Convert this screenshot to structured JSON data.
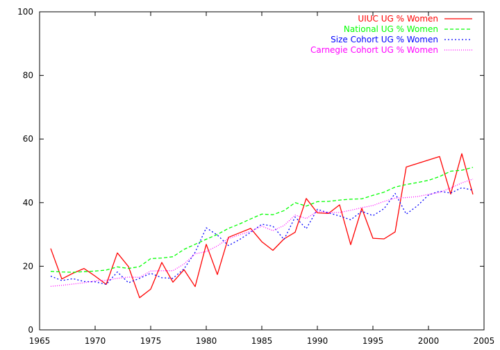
{
  "chart_data": {
    "type": "line",
    "title": "",
    "xlabel": "",
    "ylabel": "",
    "xlim": [
      1965,
      2005
    ],
    "ylim": [
      0,
      100
    ],
    "xticks": [
      1965,
      1970,
      1975,
      1980,
      1985,
      1990,
      1995,
      2000,
      2005
    ],
    "yticks": [
      0,
      20,
      40,
      60,
      80,
      100
    ],
    "grid": false,
    "legend_position": "top-right",
    "series": [
      {
        "name": "UIUC UG % Women",
        "color": "#ff0000",
        "style": "solid",
        "points": [
          [
            1966,
            25.6
          ],
          [
            1967,
            16.0
          ],
          [
            1968,
            17.8
          ],
          [
            1969,
            19.3
          ],
          [
            1970,
            16.9
          ],
          [
            1971,
            14.3
          ],
          [
            1972,
            24.2
          ],
          [
            1973,
            19.9
          ],
          [
            1974,
            10.1
          ],
          [
            1975,
            12.8
          ],
          [
            1976,
            21.2
          ],
          [
            1977,
            15.0
          ],
          [
            1978,
            18.9
          ],
          [
            1979,
            13.6
          ],
          [
            1980,
            26.9
          ],
          [
            1981,
            17.4
          ],
          [
            1982,
            29.1
          ],
          [
            1983,
            30.5
          ],
          [
            1984,
            31.9
          ],
          [
            1985,
            27.7
          ],
          [
            1986,
            25.0
          ],
          [
            1987,
            28.6
          ],
          [
            1988,
            30.7
          ],
          [
            1989,
            41.3
          ],
          [
            1990,
            36.8
          ],
          [
            1991,
            36.6
          ],
          [
            1992,
            39.3
          ],
          [
            1993,
            26.8
          ],
          [
            1994,
            38.2
          ],
          [
            1995,
            28.8
          ],
          [
            1996,
            28.6
          ],
          [
            1997,
            30.8
          ],
          [
            1998,
            51.2
          ],
          [
            2001,
            54.5
          ],
          [
            2002,
            42.7
          ],
          [
            2003,
            55.4
          ],
          [
            2004,
            42.6
          ]
        ]
      },
      {
        "name": "National UG % Women",
        "color": "#00ff00",
        "style": "dashed",
        "points": [
          [
            1966,
            18.4
          ],
          [
            1967,
            18.2
          ],
          [
            1968,
            18.1
          ],
          [
            1969,
            18.3
          ],
          [
            1970,
            18.5
          ],
          [
            1971,
            18.8
          ],
          [
            1972,
            19.8
          ],
          [
            1973,
            19.3
          ],
          [
            1974,
            19.9
          ],
          [
            1975,
            22.4
          ],
          [
            1976,
            22.6
          ],
          [
            1977,
            23.0
          ],
          [
            1978,
            25.3
          ],
          [
            1979,
            26.9
          ],
          [
            1980,
            28.5
          ],
          [
            1981,
            30.0
          ],
          [
            1982,
            31.9
          ],
          [
            1983,
            33.3
          ],
          [
            1984,
            34.9
          ],
          [
            1985,
            36.4
          ],
          [
            1986,
            36.2
          ],
          [
            1987,
            37.5
          ],
          [
            1988,
            40.0
          ],
          [
            1989,
            38.9
          ],
          [
            1990,
            40.3
          ],
          [
            1991,
            40.4
          ],
          [
            1992,
            40.8
          ],
          [
            1993,
            41.1
          ],
          [
            1994,
            41.2
          ],
          [
            1995,
            42.3
          ],
          [
            1996,
            43.3
          ],
          [
            1997,
            44.9
          ],
          [
            1998,
            45.7
          ],
          [
            1999,
            46.3
          ],
          [
            2000,
            47.0
          ],
          [
            2001,
            48.2
          ],
          [
            2002,
            49.9
          ],
          [
            2003,
            50.2
          ],
          [
            2004,
            51.1
          ]
        ]
      },
      {
        "name": "Size Cohort UG % Women",
        "color": "#0000ff",
        "style": "dotted",
        "points": [
          [
            1966,
            16.9
          ],
          [
            1967,
            15.5
          ],
          [
            1968,
            16.1
          ],
          [
            1969,
            15.2
          ],
          [
            1970,
            15.1
          ],
          [
            1971,
            14.3
          ],
          [
            1972,
            18.2
          ],
          [
            1973,
            14.8
          ],
          [
            1974,
            16.2
          ],
          [
            1975,
            17.8
          ],
          [
            1976,
            16.4
          ],
          [
            1977,
            16.2
          ],
          [
            1978,
            19.2
          ],
          [
            1979,
            24.4
          ],
          [
            1980,
            32.1
          ],
          [
            1981,
            29.8
          ],
          [
            1982,
            26.5
          ],
          [
            1983,
            28.4
          ],
          [
            1984,
            30.7
          ],
          [
            1985,
            33.2
          ],
          [
            1986,
            32.6
          ],
          [
            1987,
            28.4
          ],
          [
            1988,
            35.5
          ],
          [
            1989,
            31.8
          ],
          [
            1990,
            37.9
          ],
          [
            1991,
            36.8
          ],
          [
            1992,
            35.8
          ],
          [
            1993,
            34.6
          ],
          [
            1994,
            37.3
          ],
          [
            1995,
            35.9
          ],
          [
            1996,
            38.1
          ],
          [
            1997,
            42.9
          ],
          [
            1998,
            36.4
          ],
          [
            1999,
            39.0
          ],
          [
            2000,
            42.4
          ],
          [
            2001,
            43.6
          ],
          [
            2002,
            43.0
          ],
          [
            2003,
            44.7
          ],
          [
            2004,
            43.9
          ]
        ]
      },
      {
        "name": "Carnegie Cohort UG % Women",
        "color": "#ff00ff",
        "style": "fine-dotted",
        "points": [
          [
            1966,
            13.7
          ],
          [
            1967,
            14.0
          ],
          [
            1968,
            14.4
          ],
          [
            1969,
            14.8
          ],
          [
            1970,
            15.4
          ],
          [
            1971,
            15.6
          ],
          [
            1972,
            16.2
          ],
          [
            1973,
            16.6
          ],
          [
            1974,
            16.5
          ],
          [
            1975,
            18.5
          ],
          [
            1976,
            18.6
          ],
          [
            1977,
            18.6
          ],
          [
            1978,
            20.7
          ],
          [
            1979,
            23.9
          ],
          [
            1980,
            24.6
          ],
          [
            1981,
            26.4
          ],
          [
            1982,
            28.7
          ],
          [
            1983,
            29.9
          ],
          [
            1984,
            31.0
          ],
          [
            1985,
            32.6
          ],
          [
            1986,
            31.2
          ],
          [
            1987,
            32.8
          ],
          [
            1988,
            36.1
          ],
          [
            1989,
            35.0
          ],
          [
            1990,
            37.3
          ],
          [
            1991,
            36.9
          ],
          [
            1992,
            36.9
          ],
          [
            1993,
            37.6
          ],
          [
            1994,
            38.4
          ],
          [
            1995,
            39.1
          ],
          [
            1996,
            40.4
          ],
          [
            1997,
            41.4
          ],
          [
            1998,
            41.6
          ],
          [
            1999,
            41.9
          ],
          [
            2000,
            42.6
          ],
          [
            2001,
            43.2
          ],
          [
            2002,
            44.6
          ],
          [
            2003,
            46.2
          ],
          [
            2004,
            47.4
          ]
        ]
      }
    ]
  }
}
